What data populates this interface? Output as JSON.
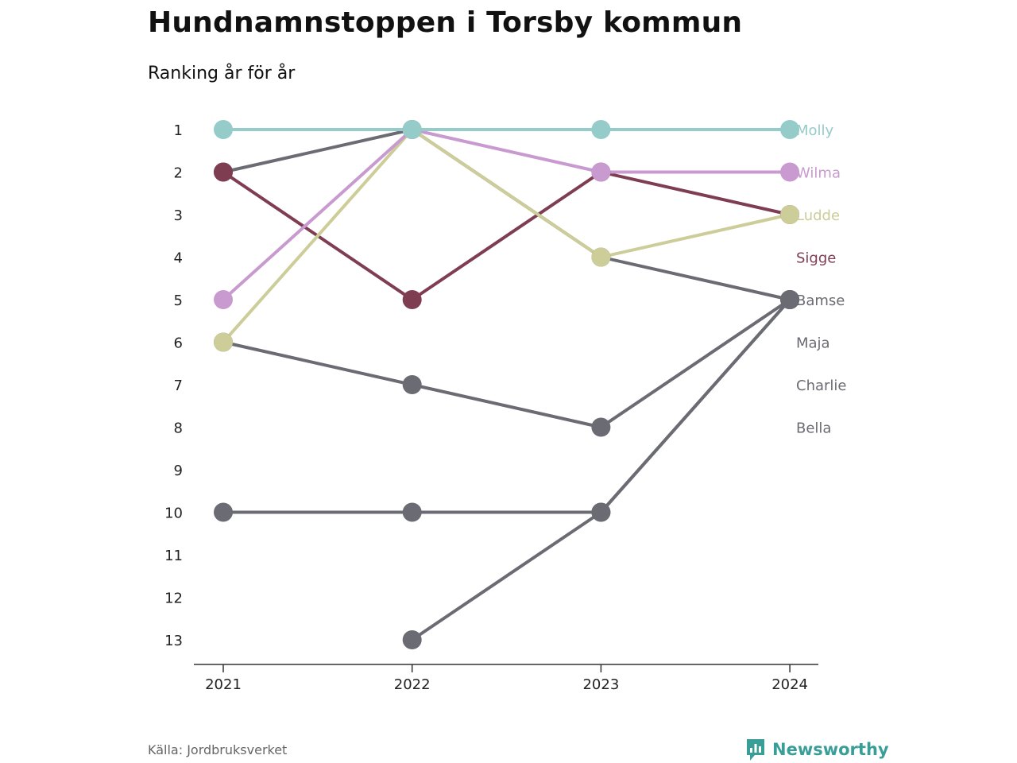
{
  "title": "Hundnamnstoppen i Torsby kommun",
  "subtitle": "Ranking år för år",
  "source": "Källa: Jordbruksverket",
  "brand": "Newsworthy",
  "chart_data": {
    "type": "line",
    "subtype": "bump",
    "x": [
      "2021",
      "2022",
      "2023",
      "2024"
    ],
    "y_ticks": [
      1,
      2,
      3,
      4,
      5,
      6,
      7,
      8,
      9,
      10,
      11,
      12,
      13
    ],
    "y_reversed": true,
    "grid": false,
    "legend": "direct labels at right",
    "series": [
      {
        "name": "Molly",
        "color": "#95cbc9",
        "values": [
          1,
          1,
          1,
          1
        ]
      },
      {
        "name": "Wilma",
        "color": "#c99acf",
        "values": [
          5,
          1,
          2,
          2
        ]
      },
      {
        "name": "Ludde",
        "color": "#cccd99",
        "values": [
          6,
          1,
          4,
          3
        ]
      },
      {
        "name": "Sigge",
        "color": "#7f3d52",
        "values": [
          2,
          5,
          2,
          3
        ]
      },
      {
        "name": "Bamse",
        "color": "#6b6b73",
        "values": [
          2,
          1,
          4,
          5
        ]
      },
      {
        "name": "Maja",
        "color": "#6b6b73",
        "values": [
          6,
          7,
          8,
          5
        ]
      },
      {
        "name": "Charlie",
        "color": "#6b6b73",
        "values": [
          10,
          10,
          10,
          5
        ]
      },
      {
        "name": "Bella",
        "color": "#6b6b73",
        "values": [
          null,
          13,
          10,
          5
        ]
      }
    ]
  }
}
